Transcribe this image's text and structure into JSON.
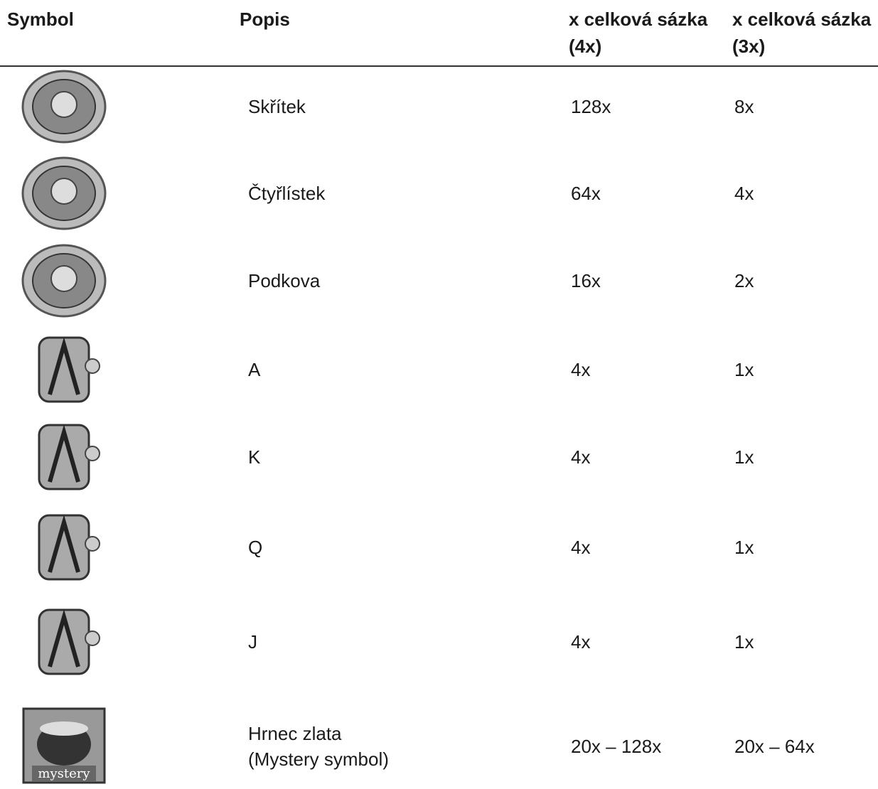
{
  "table": {
    "header": [
      "Symbol",
      "Popis",
      "x celková sázka (4x)",
      "x celková sázka (3x)"
    ],
    "rows": [
      {
        "description": "Skřítek",
        "pay4": "128x",
        "pay3": "8x"
      },
      {
        "description": "Čtyřlístek",
        "pay4": "64x",
        "pay3": "4x"
      },
      {
        "description": "Podkova",
        "pay4": "16x",
        "pay3": "2x"
      },
      {
        "description": "A",
        "pay4": "4x",
        "pay3": "1x"
      },
      {
        "description": "K",
        "pay4": "4x",
        "pay3": "1x"
      },
      {
        "description": "Q",
        "pay4": "4x",
        "pay3": "1x"
      },
      {
        "description": "J",
        "pay4": "4x",
        "pay3": "1x"
      },
      {
        "description": "Hrnec zlata",
        "note": "(Mystery symbol)",
        "pay4": "20x – 128x",
        "pay3": "20x – 64x",
        "icon_text": "mystery"
      }
    ]
  }
}
